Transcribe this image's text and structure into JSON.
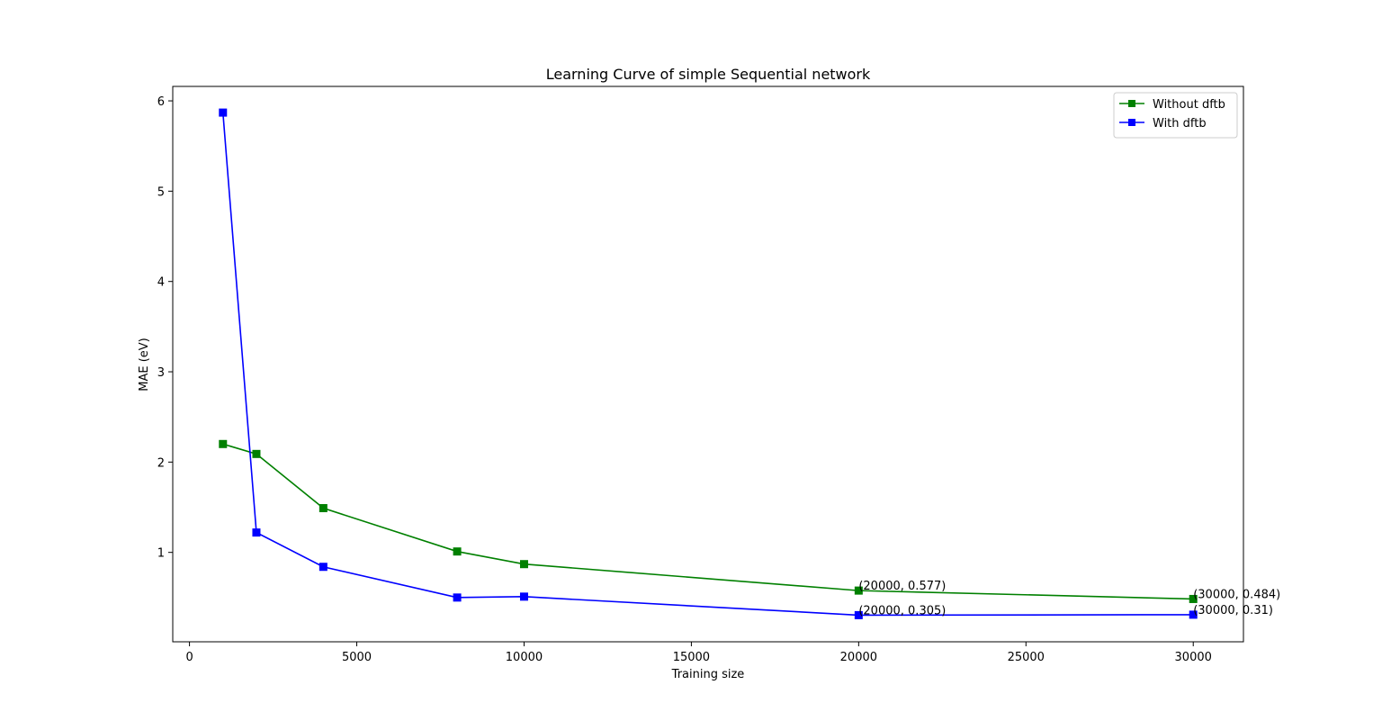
{
  "chart_data": {
    "type": "line",
    "title": "Learning Curve of simple Sequential network",
    "xlabel": "Training size",
    "ylabel": "MAE (eV)",
    "xlim": [
      -500,
      31500
    ],
    "ylim": [
      0.01,
      6.16
    ],
    "xticks": [
      0,
      5000,
      10000,
      15000,
      20000,
      25000,
      30000
    ],
    "xtick_labels": [
      "0",
      "5000",
      "10000",
      "15000",
      "20000",
      "25000",
      "30000"
    ],
    "yticks": [
      1,
      2,
      3,
      4,
      5,
      6
    ],
    "ytick_labels": [
      "1",
      "2",
      "3",
      "4",
      "5",
      "6"
    ],
    "grid": false,
    "legend_position": "top-right",
    "series": [
      {
        "name": "Without dftb",
        "color": "#008000",
        "marker": "square",
        "x": [
          1000,
          2000,
          4000,
          8000,
          10000,
          20000,
          30000
        ],
        "y": [
          2.2,
          2.09,
          1.49,
          1.01,
          0.87,
          0.577,
          0.484
        ]
      },
      {
        "name": "With dftb",
        "color": "#0000ff",
        "marker": "square",
        "x": [
          1000,
          2000,
          4000,
          8000,
          10000,
          20000,
          30000
        ],
        "y": [
          5.87,
          1.22,
          0.84,
          0.5,
          0.51,
          0.305,
          0.31
        ]
      }
    ],
    "annotations": [
      {
        "x": 20000,
        "y": 0.577,
        "text": "(20000, 0.577)"
      },
      {
        "x": 30000,
        "y": 0.484,
        "text": "(30000, 0.484)"
      },
      {
        "x": 20000,
        "y": 0.305,
        "text": "(20000, 0.305)"
      },
      {
        "x": 30000,
        "y": 0.31,
        "text": "(30000, 0.31)"
      }
    ]
  }
}
